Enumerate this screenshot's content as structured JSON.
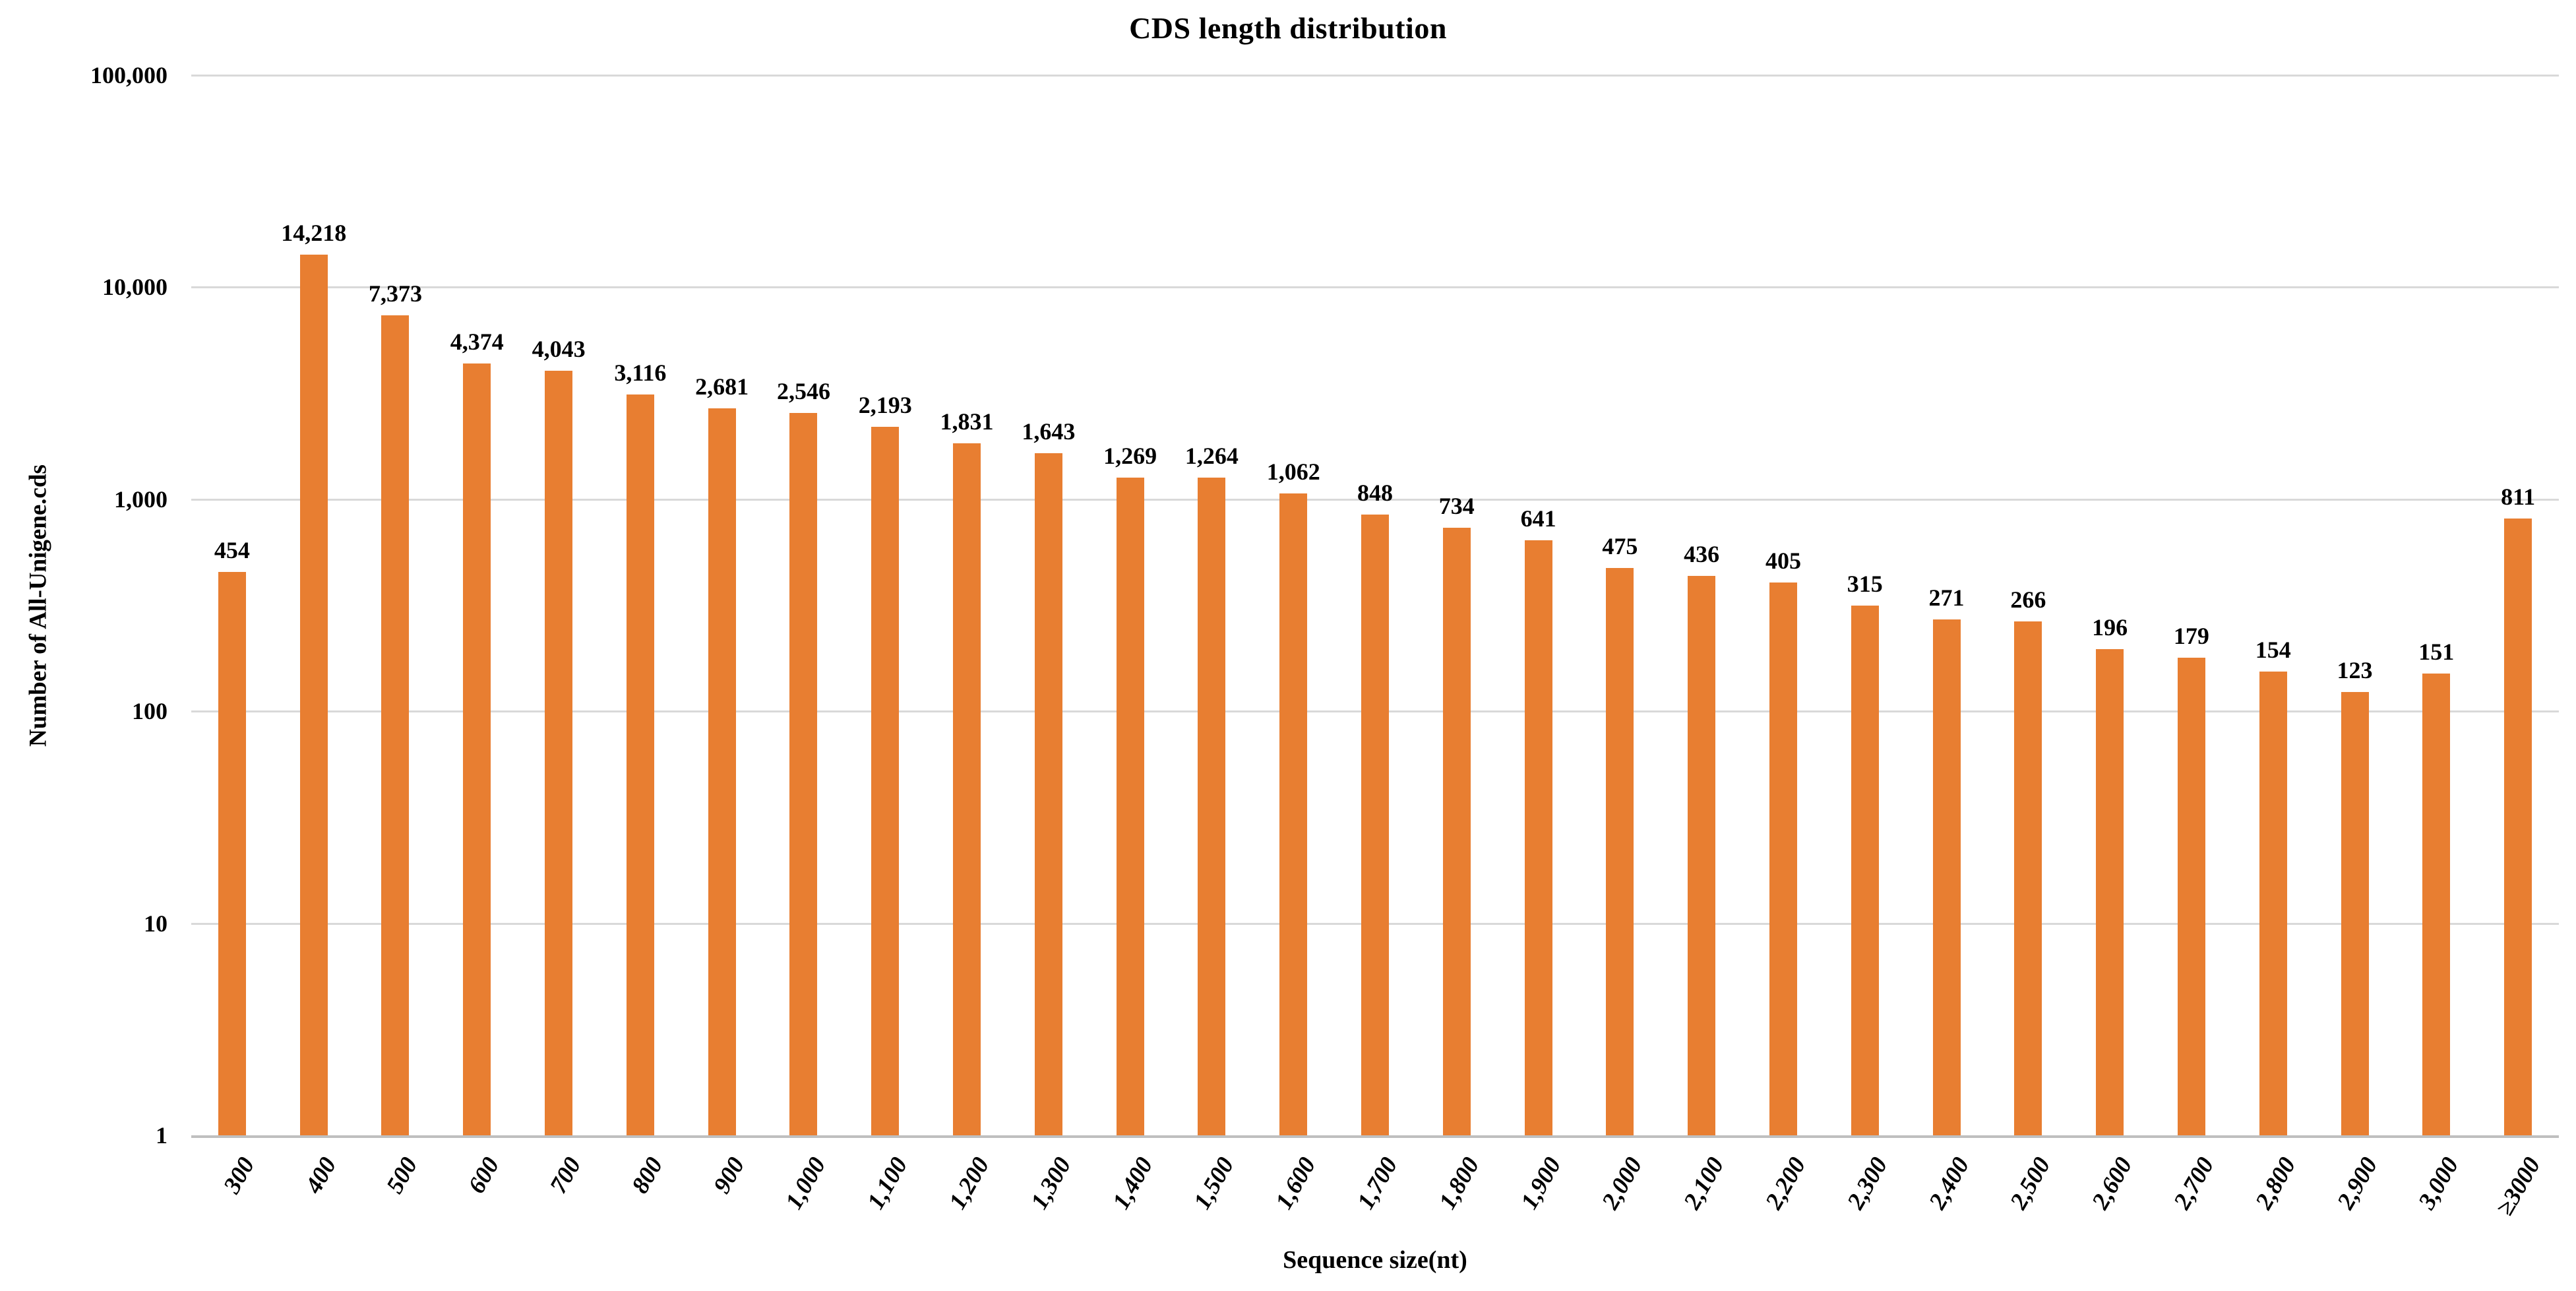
{
  "page": {
    "background": "#ffffff"
  },
  "chart_data": {
    "type": "bar",
    "title": "CDS length distribution",
    "xlabel": "Sequence size(nt)",
    "ylabel": "Number of All-Unigene.cds",
    "y_scale": "log10",
    "ylim": [
      1,
      100000
    ],
    "yticks": [
      "100,000",
      "10,000",
      "1,000",
      "100",
      "10",
      "1"
    ],
    "grid": "horizontal",
    "legend": "none",
    "bar_color": "#e87e31",
    "gridline_color": "#d9d9d9",
    "categories": [
      "300",
      "400",
      "500",
      "600",
      "700",
      "800",
      "900",
      "1,000",
      "1,100",
      "1,200",
      "1,300",
      "1,400",
      "1,500",
      "1,600",
      "1,700",
      "1,800",
      "1,900",
      "2,000",
      "2,100",
      "2,200",
      "2,300",
      "2,400",
      "2,500",
      "2,600",
      "2,700",
      "2,800",
      "2,900",
      "3,000",
      "≥3000"
    ],
    "values": [
      454,
      14218,
      7373,
      4374,
      4043,
      3116,
      2681,
      2546,
      2193,
      1831,
      1643,
      1269,
      1264,
      1062,
      848,
      734,
      641,
      475,
      436,
      405,
      315,
      271,
      266,
      196,
      179,
      154,
      123,
      151,
      811
    ],
    "value_labels": [
      "454",
      "14,218",
      "7,373",
      "4,374",
      "4,043",
      "3,116",
      "2,681",
      "2,546",
      "2,193",
      "1,831",
      "1,643",
      "1,269",
      "1,264",
      "1,062",
      "848",
      "734",
      "641",
      "475",
      "436",
      "405",
      "315",
      "271",
      "266",
      "196",
      "179",
      "154",
      "123",
      "151",
      "811"
    ]
  }
}
